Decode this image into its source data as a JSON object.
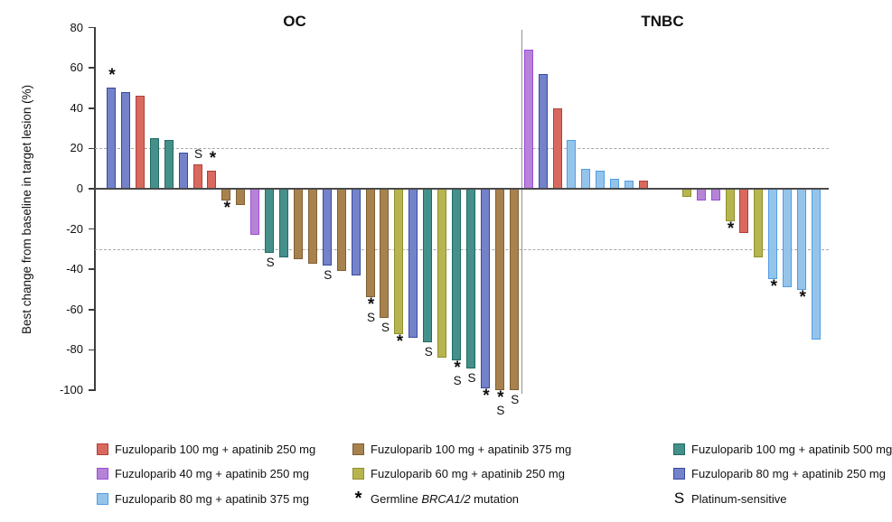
{
  "chart_data": {
    "type": "bar",
    "subtype": "waterfall",
    "ylabel": "Best change from baseline in target lesion (%)",
    "ylim": [
      -100,
      80
    ],
    "yticks": [
      80,
      60,
      40,
      20,
      0,
      -20,
      -40,
      -60,
      -80,
      -100
    ],
    "reference_lines": [
      20,
      -30
    ],
    "grid": "off",
    "legend_position": "bottom",
    "groups": [
      {
        "label": "OC"
      },
      {
        "label": "TNBC"
      }
    ],
    "arms": {
      "fzl100_apa250": {
        "label": "Fuzuloparib 100 mg + apatinib 250 mg",
        "fill": "#D9695F",
        "border": "#AF4036"
      },
      "fzl40_apa250": {
        "label": "Fuzuloparib 40 mg + apatinib 250 mg",
        "fill": "#B583D8",
        "border": "#9D4BD8"
      },
      "fzl80_apa375": {
        "label": "Fuzuloparib 80 mg + apatinib 375 mg",
        "fill": "#95C4EB",
        "border": "#4F9DE4"
      },
      "fzl100_apa375": {
        "label": "Fuzuloparib 100 mg + apatinib 375 mg",
        "fill": "#A8824E",
        "border": "#7F5F33"
      },
      "fzl60_apa250": {
        "label": "Fuzuloparib 60 mg + apatinib 250 mg",
        "fill": "#B6B550",
        "border": "#90902C"
      },
      "fzl100_apa500": {
        "label": "Fuzuloparib 100 mg + apatinib 500 mg",
        "fill": "#45908A",
        "border": "#226B62"
      },
      "fzl80_apa250": {
        "label": "Fuzuloparib 80 mg + apatinib 250 mg",
        "fill": "#7482CA",
        "border": "#38489E"
      }
    },
    "bars": [
      {
        "group": "OC",
        "arm": "fzl80_apa250",
        "value": 50,
        "marks": [
          "*"
        ]
      },
      {
        "group": "OC",
        "arm": "fzl80_apa250",
        "value": 48,
        "marks": []
      },
      {
        "group": "OC",
        "arm": "fzl100_apa250",
        "value": 46,
        "marks": []
      },
      {
        "group": "OC",
        "arm": "fzl100_apa500",
        "value": 25,
        "marks": []
      },
      {
        "group": "OC",
        "arm": "fzl100_apa500",
        "value": 24,
        "marks": []
      },
      {
        "group": "OC",
        "arm": "fzl80_apa250",
        "value": 18,
        "marks": []
      },
      {
        "group": "OC",
        "arm": "fzl100_apa250",
        "value": 12,
        "marks": [
          "S"
        ]
      },
      {
        "group": "OC",
        "arm": "fzl100_apa250",
        "value": 9,
        "marks": [
          "*"
        ]
      },
      {
        "group": "OC",
        "arm": "fzl100_apa375",
        "value": -6,
        "marks": [
          "*"
        ]
      },
      {
        "group": "OC",
        "arm": "fzl100_apa375",
        "value": -8,
        "marks": []
      },
      {
        "group": "OC",
        "arm": "fzl40_apa250",
        "value": -23,
        "marks": []
      },
      {
        "group": "OC",
        "arm": "fzl100_apa500",
        "value": -32,
        "marks": [
          "S"
        ]
      },
      {
        "group": "OC",
        "arm": "fzl100_apa500",
        "value": -34,
        "marks": []
      },
      {
        "group": "OC",
        "arm": "fzl100_apa375",
        "value": -35,
        "marks": []
      },
      {
        "group": "OC",
        "arm": "fzl100_apa375",
        "value": -37,
        "marks": []
      },
      {
        "group": "OC",
        "arm": "fzl80_apa250",
        "value": -38,
        "marks": [
          "S"
        ]
      },
      {
        "group": "OC",
        "arm": "fzl100_apa375",
        "value": -41,
        "marks": []
      },
      {
        "group": "OC",
        "arm": "fzl80_apa250",
        "value": -43,
        "marks": []
      },
      {
        "group": "OC",
        "arm": "fzl100_apa375",
        "value": -54,
        "marks": [
          "*",
          "S"
        ]
      },
      {
        "group": "OC",
        "arm": "fzl100_apa375",
        "value": -64,
        "marks": [
          "S"
        ]
      },
      {
        "group": "OC",
        "arm": "fzl60_apa250",
        "value": -72,
        "marks": [
          "*"
        ]
      },
      {
        "group": "OC",
        "arm": "fzl80_apa250",
        "value": -74,
        "marks": []
      },
      {
        "group": "OC",
        "arm": "fzl100_apa500",
        "value": -76,
        "marks": [
          "S"
        ]
      },
      {
        "group": "OC",
        "arm": "fzl60_apa250",
        "value": -84,
        "marks": []
      },
      {
        "group": "OC",
        "arm": "fzl100_apa500",
        "value": -85,
        "marks": [
          "*",
          "S"
        ]
      },
      {
        "group": "OC",
        "arm": "fzl100_apa500",
        "value": -89,
        "marks": [
          "S"
        ]
      },
      {
        "group": "OC",
        "arm": "fzl80_apa250",
        "value": -99,
        "marks": [
          "*"
        ]
      },
      {
        "group": "OC",
        "arm": "fzl100_apa375",
        "value": -100,
        "marks": [
          "*",
          "S"
        ]
      },
      {
        "group": "OC",
        "arm": "fzl100_apa375",
        "value": -100,
        "marks": [
          "S"
        ]
      },
      {
        "group": "TNBC",
        "arm": "fzl40_apa250",
        "value": 69,
        "marks": []
      },
      {
        "group": "TNBC",
        "arm": "fzl80_apa250",
        "value": 57,
        "marks": []
      },
      {
        "group": "TNBC",
        "arm": "fzl100_apa250",
        "value": 40,
        "marks": []
      },
      {
        "group": "TNBC",
        "arm": "fzl80_apa375",
        "value": 24,
        "marks": []
      },
      {
        "group": "TNBC",
        "arm": "fzl80_apa375",
        "value": 10,
        "marks": []
      },
      {
        "group": "TNBC",
        "arm": "fzl80_apa375",
        "value": 9,
        "marks": []
      },
      {
        "group": "TNBC",
        "arm": "fzl80_apa375",
        "value": 5,
        "marks": []
      },
      {
        "group": "TNBC",
        "arm": "fzl80_apa375",
        "value": 4,
        "marks": []
      },
      {
        "group": "TNBC",
        "arm": "fzl100_apa250",
        "value": 4,
        "marks": []
      },
      {
        "group": "TNBC",
        "arm": null,
        "value": 0,
        "marks": []
      },
      {
        "group": "TNBC",
        "arm": null,
        "value": 0,
        "marks": []
      },
      {
        "group": "TNBC",
        "arm": "fzl60_apa250",
        "value": -4,
        "marks": []
      },
      {
        "group": "TNBC",
        "arm": "fzl40_apa250",
        "value": -6,
        "marks": []
      },
      {
        "group": "TNBC",
        "arm": "fzl40_apa250",
        "value": -6,
        "marks": []
      },
      {
        "group": "TNBC",
        "arm": "fzl60_apa250",
        "value": -16,
        "marks": [
          "*"
        ]
      },
      {
        "group": "TNBC",
        "arm": "fzl100_apa250",
        "value": -22,
        "marks": []
      },
      {
        "group": "TNBC",
        "arm": "fzl60_apa250",
        "value": -34,
        "marks": []
      },
      {
        "group": "TNBC",
        "arm": "fzl80_apa375",
        "value": -45,
        "marks": [
          "*"
        ]
      },
      {
        "group": "TNBC",
        "arm": "fzl80_apa375",
        "value": -49,
        "marks": []
      },
      {
        "group": "TNBC",
        "arm": "fzl80_apa375",
        "value": -50,
        "marks": [
          "*"
        ]
      },
      {
        "group": "TNBC",
        "arm": "fzl80_apa375",
        "value": -75,
        "marks": []
      }
    ],
    "legend": {
      "columns": [
        {
          "items": [
            {
              "type": "swatch",
              "arm": "fzl100_apa250"
            },
            {
              "type": "swatch",
              "arm": "fzl40_apa250"
            },
            {
              "type": "swatch",
              "arm": "fzl80_apa375"
            }
          ]
        },
        {
          "items": [
            {
              "type": "swatch",
              "arm": "fzl100_apa375"
            },
            {
              "type": "swatch",
              "arm": "fzl60_apa250"
            },
            {
              "type": "marker",
              "symbol": "*",
              "prefix": "Germline ",
              "italic": "BRCA1/2",
              "suffix": " mutation"
            }
          ]
        },
        {
          "items": [
            {
              "type": "swatch",
              "arm": "fzl100_apa500"
            },
            {
              "type": "swatch",
              "arm": "fzl80_apa250"
            },
            {
              "type": "marker",
              "symbol": "S",
              "label": "Platinum-sensitive"
            }
          ]
        }
      ]
    }
  }
}
